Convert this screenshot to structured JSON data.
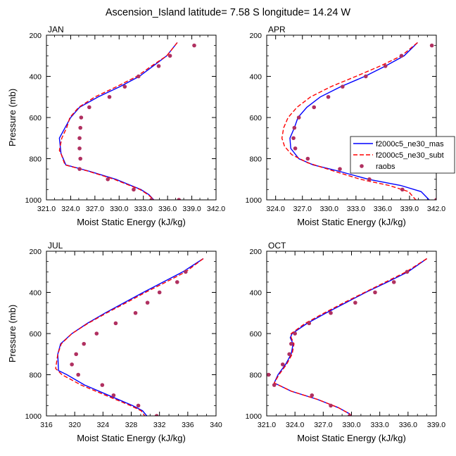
{
  "title": "Ascension_Island  latitude= 7.58 S longitude= 14.24 W",
  "legend": {
    "placement": "right of APR panel",
    "entries": [
      {
        "name": "f2000c5_ne30_mas",
        "style": "solid",
        "color": "#0000ff"
      },
      {
        "name": "f2000c5_ne30_subt",
        "style": "dashed",
        "color": "#ff0000"
      },
      {
        "name": "raobs",
        "style": "marker",
        "color": "#b03060"
      }
    ]
  },
  "chart_data": [
    {
      "type": "line",
      "panel": "JAN",
      "xlabel": "Moist Static Energy (kJ/kg)",
      "ylabel": "Pressure (mb)",
      "xlim": [
        321.0,
        342.0
      ],
      "ylim": [
        1000,
        200
      ],
      "xticks": [
        "321.0",
        "324.0",
        "327.0",
        "330.0",
        "333.0",
        "336.0",
        "339.0",
        "342.0"
      ],
      "yticks": [
        "200",
        "400",
        "600",
        "800",
        "1000"
      ],
      "series": [
        {
          "name": "f2000c5_ne30_mas",
          "x": [
            337.2,
            335.9,
            334.2,
            332.5,
            330.1,
            327.4,
            325.1,
            324.0,
            323.3,
            322.6,
            322.8,
            323.4,
            326.2,
            329.6,
            332.7,
            333.7,
            334.3,
            334.5
          ],
          "y": [
            236,
            300,
            350,
            400,
            450,
            500,
            550,
            600,
            650,
            700,
            775,
            830,
            860,
            900,
            950,
            975,
            1000,
            1012
          ]
        },
        {
          "name": "f2000c5_ne30_subt",
          "x": [
            337.2,
            335.9,
            334.0,
            332.2,
            329.7,
            327.0,
            325.0,
            323.9,
            323.5,
            322.9,
            322.6,
            322.8,
            323.3,
            326.1,
            329.4,
            332.6,
            333.6,
            334.3,
            334.5
          ],
          "y": [
            236,
            300,
            350,
            400,
            450,
            500,
            550,
            600,
            650,
            700,
            760,
            775,
            830,
            860,
            900,
            950,
            975,
            1000,
            1012
          ]
        },
        {
          "name": "raobs",
          "x": [
            339.3,
            336.3,
            334.9,
            332.4,
            330.7,
            328.8,
            326.3,
            325.3,
            325.2,
            325.1,
            325.1,
            325.2,
            325.1,
            328.6,
            331.8,
            334.0,
            337.4
          ],
          "y": [
            250,
            300,
            350,
            400,
            450,
            500,
            550,
            600,
            650,
            700,
            750,
            800,
            850,
            900,
            950,
            1000,
            1000
          ]
        }
      ]
    },
    {
      "type": "line",
      "panel": "APR",
      "xlabel": "Moist Static Energy (kJ/kg)",
      "ylabel": "",
      "xlim": [
        323.0,
        342.0
      ],
      "ylim": [
        1000,
        200
      ],
      "xticks": [
        "324.0",
        "327.0",
        "330.0",
        "333.0",
        "336.0",
        "339.0",
        "342.0"
      ],
      "yticks": [
        "200",
        "400",
        "600",
        "800",
        "1000"
      ],
      "series": [
        {
          "name": "f2000c5_ne30_mas",
          "x": [
            339.9,
            338.4,
            336.3,
            334.0,
            331.3,
            329.0,
            327.5,
            326.5,
            326.1,
            325.6,
            325.7,
            326.6,
            328.2,
            331.0,
            334.4,
            338.0,
            340.3,
            341.2
          ],
          "y": [
            236,
            300,
            350,
            400,
            450,
            500,
            550,
            600,
            650,
            700,
            750,
            800,
            830,
            860,
            900,
            930,
            960,
            1000
          ]
        },
        {
          "name": "f2000c5_ne30_subt",
          "x": [
            339.9,
            338.1,
            335.7,
            333.0,
            330.2,
            327.9,
            326.4,
            325.4,
            324.9,
            324.7,
            325.0,
            325.8,
            327.6,
            330.5,
            333.5,
            336.7,
            338.9,
            339.7
          ],
          "y": [
            236,
            300,
            350,
            400,
            450,
            500,
            550,
            600,
            650,
            700,
            740,
            780,
            820,
            860,
            900,
            930,
            960,
            1000
          ]
        },
        {
          "name": "raobs",
          "x": [
            341.5,
            338.1,
            336.3,
            334.1,
            331.5,
            329.9,
            328.3,
            326.6,
            326.1,
            326.0,
            326.2,
            327.6,
            331.2,
            334.5,
            338.2,
            342.0
          ],
          "y": [
            250,
            300,
            350,
            400,
            450,
            500,
            550,
            600,
            650,
            700,
            750,
            800,
            850,
            900,
            950,
            1000
          ]
        }
      ]
    },
    {
      "type": "line",
      "panel": "JUL",
      "xlabel": "Moist Static Energy (kJ/kg)",
      "ylabel": "Pressure (mb)",
      "xlim": [
        316.0,
        340.0
      ],
      "ylim": [
        1000,
        200
      ],
      "xticks": [
        "316",
        "320",
        "324",
        "328",
        "332",
        "336",
        "340"
      ],
      "yticks": [
        "200",
        "400",
        "600",
        "800",
        "1000"
      ],
      "series": [
        {
          "name": "f2000c5_ne30_mas",
          "x": [
            338.2,
            335.3,
            332.5,
            329.7,
            327.0,
            324.3,
            321.8,
            319.6,
            318.0,
            317.6,
            317.7,
            318.9,
            321.4,
            324.8,
            328.2,
            329.6,
            330.2
          ],
          "y": [
            236,
            300,
            350,
            400,
            450,
            500,
            550,
            600,
            650,
            700,
            780,
            800,
            850,
            900,
            950,
            975,
            1000
          ]
        },
        {
          "name": "f2000c5_ne30_subt",
          "x": [
            338.2,
            335.7,
            332.9,
            330.0,
            327.3,
            324.5,
            321.9,
            319.6,
            318.1,
            317.6,
            317.3,
            318.2,
            320.9,
            324.4,
            327.9,
            329.4,
            329.9
          ],
          "y": [
            236,
            300,
            350,
            400,
            450,
            500,
            550,
            600,
            650,
            700,
            770,
            800,
            850,
            900,
            950,
            975,
            1000
          ]
        },
        {
          "name": "raobs",
          "x": [
            335.7,
            334.5,
            332.0,
            330.3,
            328.6,
            325.8,
            323.1,
            321.3,
            320.2,
            319.6,
            320.5,
            323.9,
            325.5,
            329.0,
            331.6
          ],
          "y": [
            300,
            350,
            400,
            450,
            500,
            550,
            600,
            650,
            700,
            750,
            800,
            850,
            900,
            950,
            1000
          ]
        }
      ]
    },
    {
      "type": "line",
      "panel": "OCT",
      "xlabel": "Moist Static Energy (kJ/kg)",
      "ylabel": "",
      "xlim": [
        321.0,
        339.0
      ],
      "ylim": [
        1000,
        200
      ],
      "xticks": [
        "321.0",
        "324.0",
        "327.0",
        "330.0",
        "333.0",
        "336.0",
        "339.0"
      ],
      "yticks": [
        "200",
        "400",
        "600",
        "800",
        "1000"
      ],
      "series": [
        {
          "name": "f2000c5_ne30_mas",
          "x": [
            338.0,
            336.0,
            333.8,
            331.5,
            329.4,
            327.3,
            325.3,
            323.7,
            323.5,
            323.8,
            323.6,
            323.0,
            322.2,
            321.8,
            323.6,
            326.4,
            328.6,
            329.8,
            330.2
          ],
          "y": [
            236,
            300,
            350,
            400,
            450,
            500,
            550,
            600,
            620,
            650,
            700,
            750,
            800,
            840,
            880,
            920,
            960,
            990,
            1010
          ]
        },
        {
          "name": "f2000c5_ne30_subt",
          "x": [
            338.0,
            335.8,
            333.6,
            331.4,
            329.2,
            327.1,
            325.1,
            323.6,
            323.6,
            323.9,
            323.7,
            323.1,
            322.3,
            321.8,
            323.6,
            326.4,
            328.6,
            329.8,
            330.2
          ],
          "y": [
            236,
            300,
            350,
            400,
            450,
            500,
            550,
            600,
            620,
            650,
            700,
            750,
            800,
            840,
            880,
            920,
            960,
            990,
            1010
          ]
        },
        {
          "name": "raobs",
          "x": [
            335.9,
            334.5,
            332.5,
            330.4,
            327.8,
            325.5,
            324.0,
            323.6,
            323.4,
            322.7,
            321.2,
            321.8,
            325.8,
            327.8,
            329.8
          ],
          "y": [
            300,
            350,
            400,
            450,
            500,
            550,
            600,
            650,
            700,
            750,
            800,
            850,
            900,
            950,
            1000
          ]
        }
      ]
    }
  ]
}
